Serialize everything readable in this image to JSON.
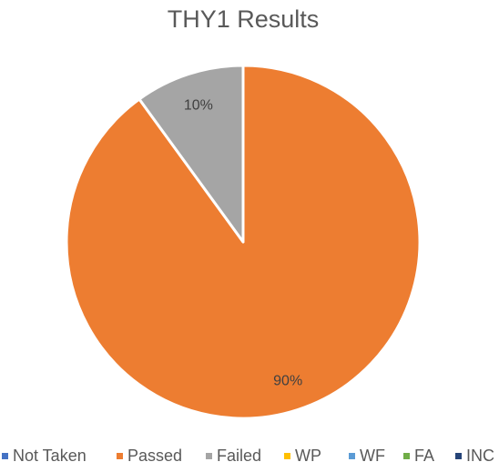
{
  "chart_data": {
    "type": "pie",
    "title": "THY1 Results",
    "categories": [
      "Not Taken",
      "Passed",
      "Failed",
      "WP",
      "WF",
      "FA",
      "INC"
    ],
    "values": [
      0,
      90,
      10,
      0,
      0,
      0,
      0
    ],
    "labels": [
      "",
      "90%",
      "10%",
      "",
      "",
      "",
      ""
    ],
    "colors": [
      "#4472C4",
      "#ED7D31",
      "#A5A5A5",
      "#FFC000",
      "#5B9BD5",
      "#70AD47",
      "#264478"
    ],
    "legend_position": "bottom"
  }
}
